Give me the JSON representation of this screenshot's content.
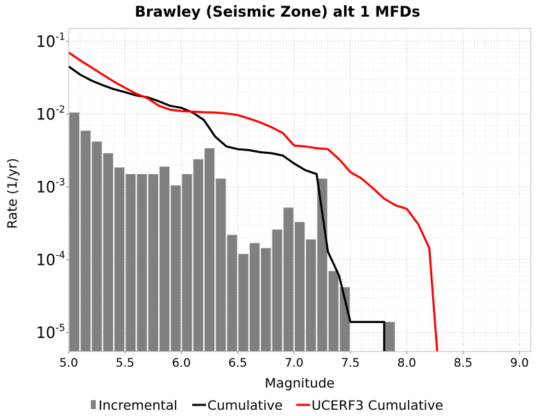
{
  "chart_data": {
    "type": "bar+line",
    "title": "Brawley (Seismic Zone) alt 1 MFDs",
    "xlabel": "Magnitude",
    "ylabel": "Rate (1/yr)",
    "xlim": [
      5.0,
      9.1
    ],
    "ylim": [
      5.5e-06,
      0.15
    ],
    "yscale": "log",
    "grid": true,
    "legend_position": "bottom",
    "x_ticks": [
      "5.0",
      "5.5",
      "6.0",
      "6.5",
      "7.0",
      "7.5",
      "8.0",
      "8.5",
      "9.0"
    ],
    "y_ticks": [
      {
        "base": "10",
        "exp": "-1",
        "value": 0.1
      },
      {
        "base": "10",
        "exp": "-2",
        "value": 0.01
      },
      {
        "base": "10",
        "exp": "-3",
        "value": 0.001
      },
      {
        "base": "10",
        "exp": "-4",
        "value": 0.0001
      },
      {
        "base": "10",
        "exp": "-5",
        "value": 1e-05
      }
    ],
    "colors": {
      "incremental": "#808080",
      "cumulative": "#000000",
      "ucerf3": "#ff0000",
      "grid": "#dddddd",
      "frame": "#bbbbbb"
    },
    "series": [
      {
        "name": "Incremental",
        "kind": "bar",
        "x": [
          5.05,
          5.15,
          5.25,
          5.35,
          5.45,
          5.55,
          5.65,
          5.75,
          5.85,
          5.95,
          6.05,
          6.15,
          6.25,
          6.35,
          6.45,
          6.55,
          6.65,
          6.75,
          6.85,
          6.95,
          7.05,
          7.15,
          7.25,
          7.35,
          7.45,
          7.85
        ],
        "values": [
          0.0105,
          0.0059,
          0.0042,
          0.0029,
          0.00185,
          0.0015,
          0.0015,
          0.0015,
          0.0019,
          0.00105,
          0.0015,
          0.0024,
          0.0034,
          0.0013,
          0.00022,
          0.00012,
          0.00017,
          0.000145,
          0.00026,
          0.00052,
          0.00033,
          0.00019,
          0.0013,
          7e-05,
          4.2e-05,
          1.4e-05
        ]
      },
      {
        "name": "Cumulative",
        "kind": "line",
        "x": [
          5.0,
          5.1,
          5.2,
          5.3,
          5.4,
          5.5,
          5.6,
          5.7,
          5.8,
          5.9,
          6.0,
          6.1,
          6.2,
          6.3,
          6.4,
          6.5,
          6.6,
          6.7,
          6.8,
          6.9,
          7.0,
          7.1,
          7.2,
          7.3,
          7.4,
          7.5,
          7.6,
          7.7,
          7.8,
          7.8
        ],
        "values": [
          0.045,
          0.035,
          0.029,
          0.025,
          0.022,
          0.02,
          0.018,
          0.017,
          0.015,
          0.013,
          0.0122,
          0.0105,
          0.0083,
          0.0049,
          0.0036,
          0.0033,
          0.0032,
          0.003,
          0.0029,
          0.0027,
          0.0021,
          0.0017,
          0.0015,
          0.00013,
          6e-05,
          1.4e-05,
          1.4e-05,
          1.4e-05,
          1.4e-05,
          1e-06
        ]
      },
      {
        "name": "UCERF3 Cumulative",
        "kind": "line",
        "x": [
          5.0,
          5.1,
          5.2,
          5.3,
          5.4,
          5.5,
          5.6,
          5.7,
          5.8,
          5.9,
          6.0,
          6.1,
          6.2,
          6.3,
          6.4,
          6.5,
          6.6,
          6.7,
          6.8,
          6.9,
          7.0,
          7.1,
          7.2,
          7.3,
          7.4,
          7.5,
          7.6,
          7.7,
          7.8,
          7.9,
          8.0,
          8.1,
          8.2,
          8.27
        ],
        "values": [
          0.07,
          0.055,
          0.044,
          0.035,
          0.028,
          0.023,
          0.019,
          0.0165,
          0.013,
          0.0115,
          0.011,
          0.0108,
          0.0106,
          0.0105,
          0.0102,
          0.0097,
          0.0087,
          0.0077,
          0.0066,
          0.0055,
          0.0037,
          0.0036,
          0.0034,
          0.0033,
          0.0024,
          0.0016,
          0.0013,
          0.00096,
          0.00069,
          0.00056,
          0.0005,
          0.00031,
          0.000145,
          1e-06
        ]
      }
    ]
  }
}
